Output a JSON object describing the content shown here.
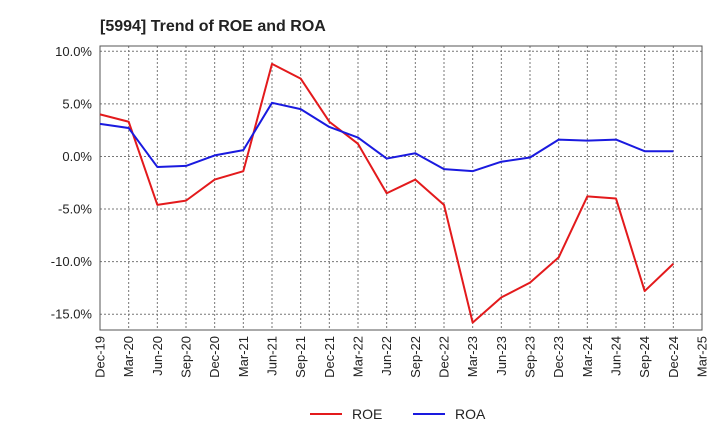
{
  "chart_data": {
    "type": "line",
    "title": "[5994]  Trend of ROE and ROA",
    "x": [
      "Dec-19",
      "Mar-20",
      "Jun-20",
      "Sep-20",
      "Dec-20",
      "Mar-21",
      "Jun-21",
      "Sep-21",
      "Dec-21",
      "Mar-22",
      "Jun-22",
      "Sep-22",
      "Dec-22",
      "Mar-23",
      "Jun-23",
      "Sep-23",
      "Dec-23",
      "Mar-24",
      "Jun-24",
      "Sep-24",
      "Dec-24",
      "Mar-25"
    ],
    "y_ticks": [
      "10.0%",
      "5.0%",
      "0.0%",
      "-5.0%",
      "-10.0%",
      "-15.0%"
    ],
    "y_tick_values": [
      10,
      5,
      0,
      -5,
      -10,
      -15
    ],
    "ylim": [
      -16.5,
      10.5
    ],
    "grid": true,
    "legend_position": "bottom",
    "series": [
      {
        "name": "ROE",
        "color": "#e31a1c",
        "values": [
          4.0,
          3.3,
          -4.6,
          -4.2,
          -2.2,
          -1.4,
          8.8,
          7.4,
          3.3,
          1.2,
          -3.5,
          -2.2,
          -4.6,
          -15.8,
          -13.4,
          -12.0,
          -9.6,
          -3.8,
          -4.0,
          -12.8,
          -10.2,
          null
        ]
      },
      {
        "name": "ROA",
        "color": "#1a1adf",
        "values": [
          3.1,
          2.7,
          -1.0,
          -0.9,
          0.1,
          0.6,
          5.1,
          4.5,
          2.8,
          1.8,
          -0.2,
          0.3,
          -1.2,
          -1.4,
          -0.5,
          -0.1,
          1.6,
          1.5,
          1.6,
          0.5,
          0.5,
          null
        ]
      }
    ]
  }
}
